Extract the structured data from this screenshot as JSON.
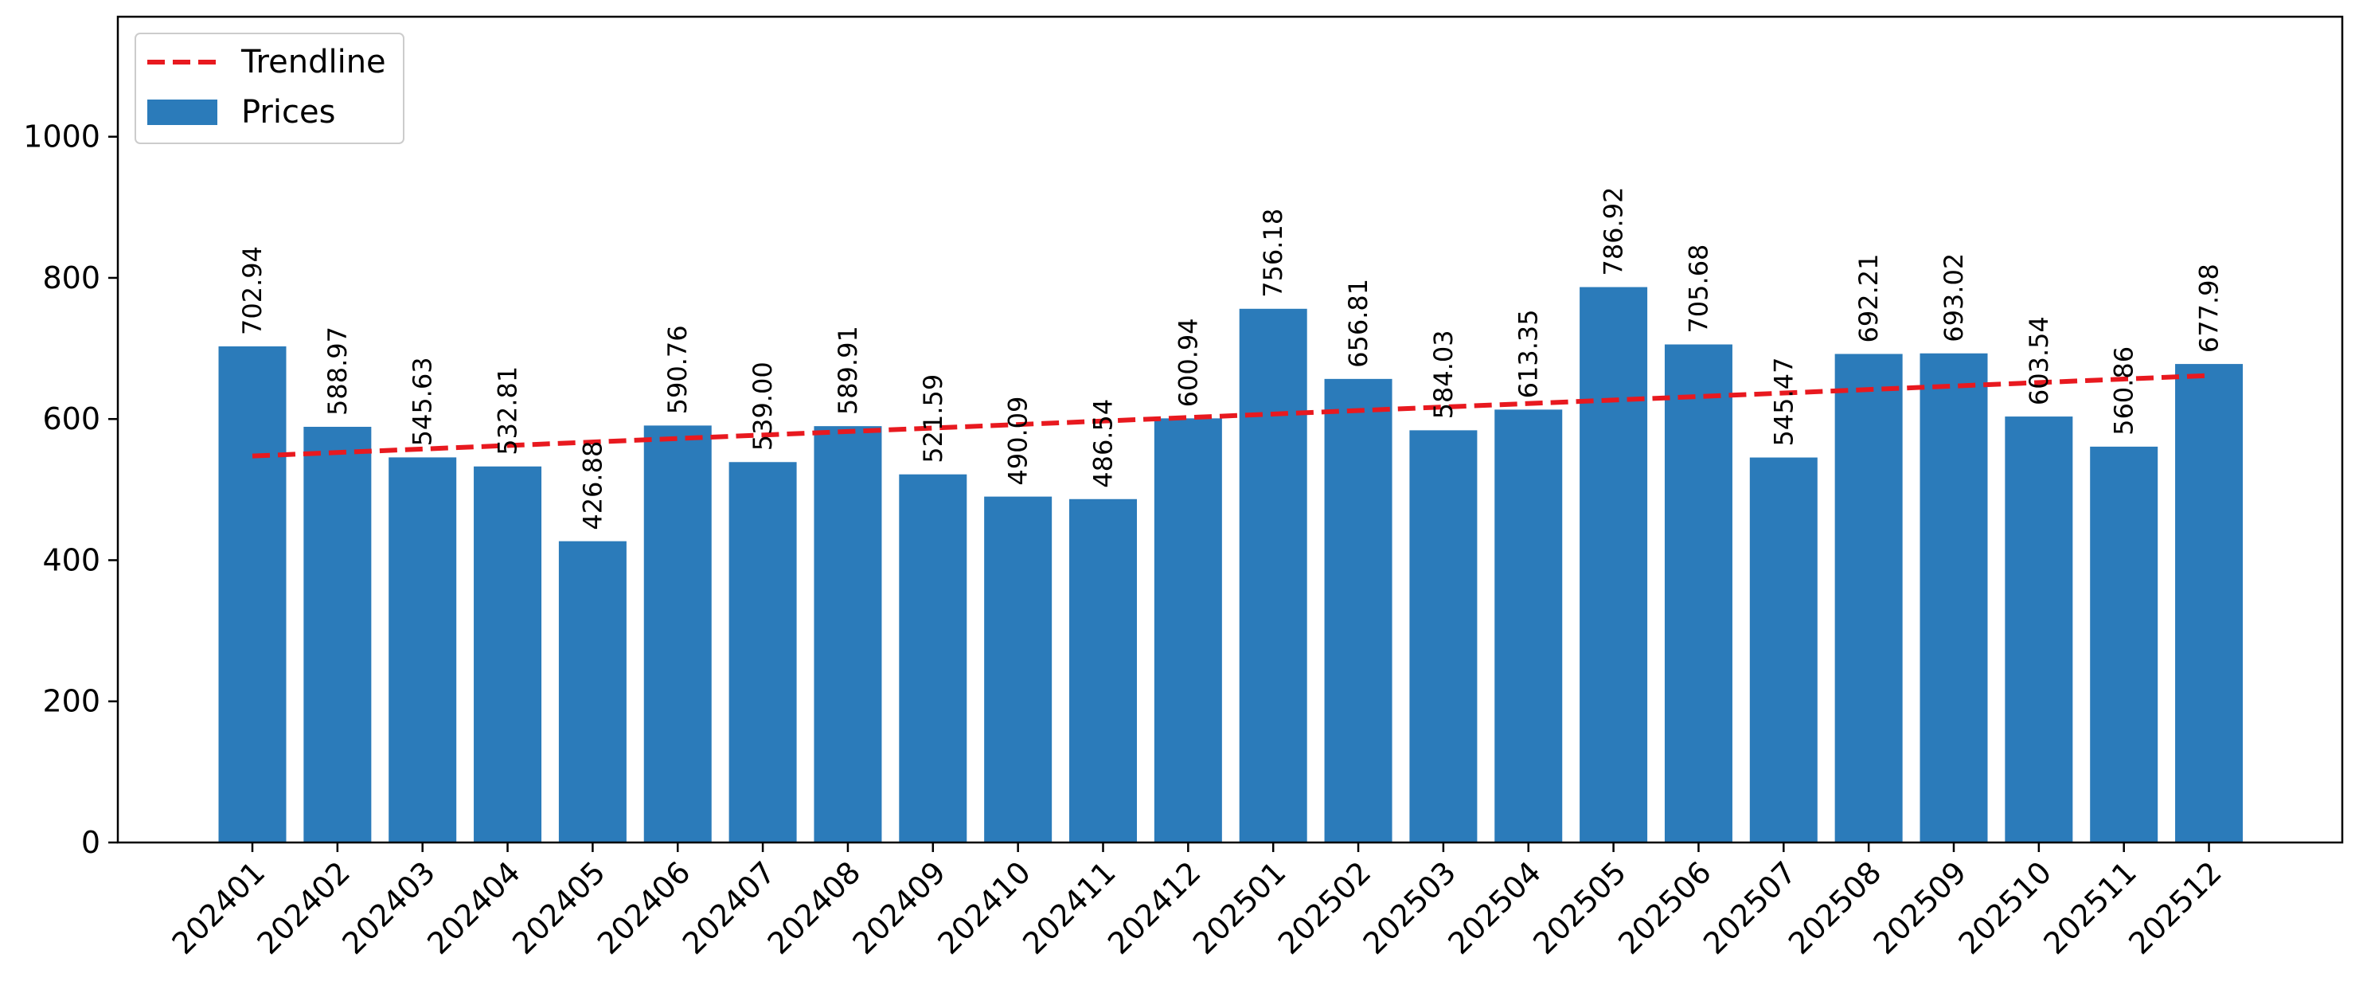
{
  "chart_data": {
    "type": "bar",
    "title": "",
    "xlabel": "",
    "ylabel": "",
    "categories": [
      "202401",
      "202402",
      "202403",
      "202404",
      "202405",
      "202406",
      "202407",
      "202408",
      "202409",
      "202410",
      "202411",
      "202412",
      "202501",
      "202502",
      "202503",
      "202504",
      "202505",
      "202506",
      "202507",
      "202508",
      "202509",
      "202510",
      "202511",
      "202512"
    ],
    "series": [
      {
        "name": "Prices",
        "values": [
          702.94,
          588.97,
          545.63,
          532.81,
          426.88,
          590.76,
          539.0,
          589.91,
          521.59,
          490.09,
          486.54,
          600.94,
          756.18,
          656.81,
          584.03,
          613.35,
          786.92,
          705.68,
          545.47,
          692.21,
          693.02,
          603.54,
          560.86,
          677.98
        ],
        "value_labels": [
          "702.94",
          "588.97",
          "545.63",
          "532.81",
          "426.88",
          "590.76",
          "539.00",
          "589.91",
          "521.59",
          "490.09",
          "486.54",
          "600.94",
          "756.18",
          "656.81",
          "584.03",
          "613.35",
          "786.92",
          "705.68",
          "545.47",
          "692.21",
          "693.02",
          "603.54",
          "560.86",
          "677.98"
        ],
        "color": "#2b7bba"
      }
    ],
    "trendline": {
      "name": "Trendline",
      "start": 547.6,
      "end": 661.6,
      "color": "#e8191f",
      "style": "dashed"
    },
    "ylim": [
      0,
      1170
    ],
    "yticks": [
      0,
      200,
      400,
      600,
      800,
      1000
    ],
    "ytick_labels": [
      "0",
      "200",
      "400",
      "600",
      "800",
      "1000"
    ],
    "grid": false,
    "legend": {
      "position": "top-left",
      "entries": [
        "Trendline",
        "Prices"
      ]
    }
  }
}
